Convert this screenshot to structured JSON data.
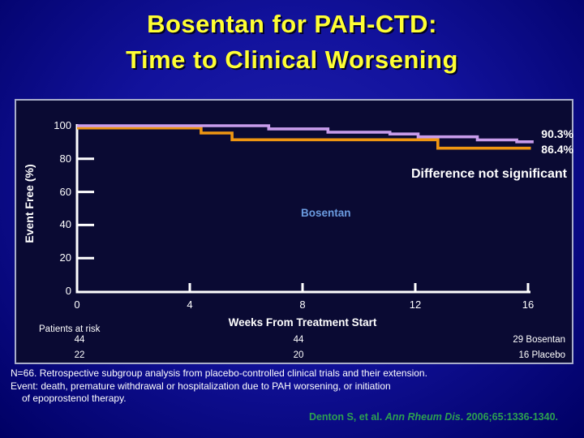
{
  "title": {
    "line1": "Bosentan for PAH-CTD:",
    "line2": "Time to Clinical Worsening"
  },
  "chart_data": {
    "type": "line",
    "subtype": "kaplan-meier-step",
    "xlabel": "Weeks From Treatment Start",
    "ylabel": "Event Free (%)",
    "xlim": [
      0,
      16
    ],
    "ylim": [
      0,
      100
    ],
    "x_ticks": [
      0,
      4,
      8,
      12,
      16
    ],
    "y_ticks": [
      100,
      80,
      60,
      40,
      20,
      0
    ],
    "grid": false,
    "legend_position": "none",
    "annotation": "Difference not significant",
    "series": [
      {
        "name": "Bosentan",
        "color": "#c89ceb",
        "final_value": 90.3,
        "final_label": "90.3%",
        "steps": [
          [
            0,
            100
          ],
          [
            6.8,
            100
          ],
          [
            6.8,
            98.1
          ],
          [
            8.9,
            98.1
          ],
          [
            8.9,
            96.1
          ],
          [
            11.1,
            96.1
          ],
          [
            11.1,
            95.0
          ],
          [
            12.1,
            95.0
          ],
          [
            12.1,
            93.3
          ],
          [
            14.2,
            93.3
          ],
          [
            14.2,
            91.4
          ],
          [
            15.6,
            91.4
          ],
          [
            15.6,
            90.3
          ],
          [
            16.2,
            90.3
          ]
        ]
      },
      {
        "name": "Placebo",
        "color": "#ef9612",
        "final_value": 86.4,
        "final_label": "86.4%",
        "steps": [
          [
            0,
            100
          ],
          [
            4.4,
            100
          ],
          [
            4.4,
            95.6
          ],
          [
            5.5,
            95.6
          ],
          [
            5.5,
            91.5
          ],
          [
            12.8,
            91.5
          ],
          [
            12.8,
            86.4
          ],
          [
            16.1,
            86.4
          ]
        ]
      }
    ],
    "series_inline_label": "Bosentan"
  },
  "risk_table": {
    "label": "Patients at risk",
    "rows": [
      {
        "c1": "44",
        "c2": "44",
        "c3": "29 Bosentan"
      },
      {
        "c1": "22",
        "c2": "20",
        "c3": "16 Placebo"
      }
    ]
  },
  "footnote": {
    "line1": "N=66. Retrospective subgroup analysis from placebo-controlled clinical trials and their extension.",
    "line2": "Event: death, premature withdrawal or hospitalization due to PAH worsening, or initiation",
    "line3": "of epoprostenol therapy."
  },
  "citation": {
    "authors": "Denton S, et al. ",
    "journal": "Ann Rheum Dis",
    "rest": ". 2006;65:1336-1340."
  },
  "colors": {
    "title_text": "#ffff33",
    "slide_bg": "#12129c",
    "plot_bg": "#0a0a33",
    "plot_border": "#a9aecb",
    "axis": "#ffffff",
    "bosentan_line": "#c89ceb",
    "placebo_line": "#ef9612",
    "series_label_text": "#6b9be0",
    "citation_text": "#2da050"
  }
}
